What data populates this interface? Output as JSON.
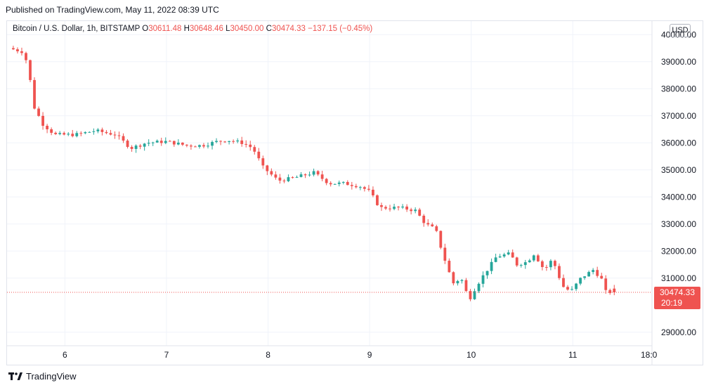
{
  "header": {
    "published": "Published on TradingView.com, May 11, 2022 08:39 UTC"
  },
  "legend": {
    "symbol": "Bitcoin / U.S. Dollar, 1h, BITSTAMP",
    "open_label": "O",
    "open": "30611.48",
    "high_label": "H",
    "high": "30648.46",
    "low_label": "L",
    "low": "30450.00",
    "close_label": "C",
    "close": "30474.33",
    "change": "−137.15 (−0.45%)"
  },
  "currency": "USD",
  "price_badge": {
    "price": "30474.33",
    "countdown": "20:19"
  },
  "brand": {
    "name": "TradingView",
    "icon": "tradingview-logo-icon"
  },
  "colors": {
    "up": "#26a69a",
    "down": "#ef5350",
    "grid": "#f0f3fa",
    "text": "#131722"
  },
  "chart_data": {
    "type": "candlestick",
    "ylim": [
      28500,
      40500
    ],
    "xlim": [
      5.43,
      11.78
    ],
    "y_ticks": [
      "29000.00",
      "31000.00",
      "32000.00",
      "33000.00",
      "34000.00",
      "35000.00",
      "36000.00",
      "37000.00",
      "38000.00",
      "39000.00",
      "40000.00"
    ],
    "x_ticks": [
      {
        "t": 6,
        "label": "6"
      },
      {
        "t": 7,
        "label": "7"
      },
      {
        "t": 8,
        "label": "8"
      },
      {
        "t": 9,
        "label": "9"
      },
      {
        "t": 10,
        "label": "10"
      },
      {
        "t": 11,
        "label": "11"
      },
      {
        "t": 11.75,
        "label": "18:0"
      }
    ],
    "anchors": [
      [
        5.45,
        39500
      ],
      [
        5.5,
        39450
      ],
      [
        5.6,
        39350
      ],
      [
        5.65,
        38500
      ],
      [
        5.7,
        37300
      ],
      [
        5.78,
        36700
      ],
      [
        5.9,
        36300
      ],
      [
        6.1,
        36300
      ],
      [
        6.3,
        36450
      ],
      [
        6.5,
        36300
      ],
      [
        6.65,
        35800
      ],
      [
        6.8,
        36000
      ],
      [
        7.0,
        36050
      ],
      [
        7.2,
        35900
      ],
      [
        7.35,
        35900
      ],
      [
        7.5,
        36050
      ],
      [
        7.6,
        36100
      ],
      [
        7.75,
        36000
      ],
      [
        7.85,
        35800
      ],
      [
        7.95,
        35100
      ],
      [
        8.1,
        34600
      ],
      [
        8.25,
        34700
      ],
      [
        8.45,
        34900
      ],
      [
        8.6,
        34500
      ],
      [
        8.75,
        34500
      ],
      [
        8.9,
        34400
      ],
      [
        9.0,
        34200
      ],
      [
        9.1,
        33600
      ],
      [
        9.3,
        33600
      ],
      [
        9.45,
        33500
      ],
      [
        9.55,
        33000
      ],
      [
        9.65,
        32800
      ],
      [
        9.72,
        31900
      ],
      [
        9.82,
        30800
      ],
      [
        9.9,
        31000
      ],
      [
        9.98,
        30200
      ],
      [
        10.05,
        30700
      ],
      [
        10.12,
        31100
      ],
      [
        10.25,
        31800
      ],
      [
        10.38,
        31900
      ],
      [
        10.45,
        31500
      ],
      [
        10.55,
        31600
      ],
      [
        10.62,
        31900
      ],
      [
        10.72,
        31300
      ],
      [
        10.8,
        31700
      ],
      [
        10.9,
        30700
      ],
      [
        10.98,
        30500
      ],
      [
        11.08,
        31000
      ],
      [
        11.2,
        31300
      ],
      [
        11.28,
        31000
      ],
      [
        11.32,
        30500
      ],
      [
        11.4,
        30474
      ]
    ]
  }
}
